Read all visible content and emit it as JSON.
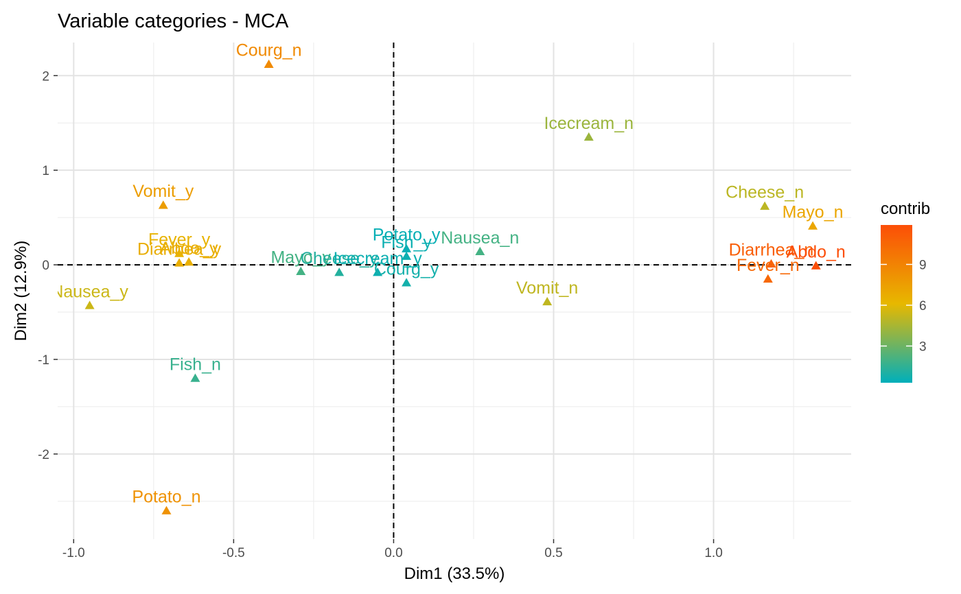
{
  "chart_data": {
    "type": "scatter",
    "title": "Variable categories - MCA",
    "xlabel": "Dim1 (33.5%)",
    "ylabel": "Dim2 (12.9%)",
    "xlim": [
      -1.05,
      1.43
    ],
    "ylim": [
      -2.9,
      2.35
    ],
    "x_ticks": [
      -1.0,
      -0.5,
      0.0,
      0.5,
      1.0
    ],
    "x_tick_labels": [
      "-1.0",
      "-0.5",
      "0.0",
      "0.5",
      "1.0"
    ],
    "y_ticks": [
      -2,
      -1,
      0,
      1,
      2
    ],
    "y_tick_labels": [
      "-2",
      "-1",
      "0",
      "1",
      "2"
    ],
    "grid": true,
    "reference_lines": {
      "x": 0,
      "y": 0,
      "style": "dashed"
    },
    "marker": "triangle",
    "legend": {
      "title": "contrib",
      "placement": "right",
      "min": 0.3,
      "max": 11.9,
      "ticks": [
        3,
        6,
        9
      ],
      "tick_labels": [
        "3",
        "6",
        "9"
      ],
      "colors": [
        "#00AFBB",
        "#E7B800",
        "#FC4E07"
      ]
    },
    "points": [
      {
        "label": "Courg_n",
        "x": -0.39,
        "y": 2.12,
        "contrib": 8.6
      },
      {
        "label": "Icecream_n",
        "x": 0.61,
        "y": 1.35,
        "contrib": 4.2
      },
      {
        "label": "Cheese_n",
        "x": 1.16,
        "y": 0.62,
        "contrib": 5.0
      },
      {
        "label": "Mayo_n",
        "x": 1.31,
        "y": 0.41,
        "contrib": 7.1
      },
      {
        "label": "Vomit_y",
        "x": -0.72,
        "y": 0.63,
        "contrib": 7.6
      },
      {
        "label": "Fever_y",
        "x": -0.67,
        "y": 0.12,
        "contrib": 6.4
      },
      {
        "label": "Abdo_y",
        "x": -0.64,
        "y": 0.03,
        "contrib": 6.6
      },
      {
        "label": "Diarrhea_y",
        "x": -0.67,
        "y": 0.02,
        "contrib": 6.7
      },
      {
        "label": "Nausea_y",
        "x": -0.95,
        "y": -0.43,
        "contrib": 5.4
      },
      {
        "label": "Potato_y",
        "x": 0.04,
        "y": 0.17,
        "contrib": 0.5
      },
      {
        "label": "Fish_y",
        "x": 0.04,
        "y": 0.09,
        "contrib": 0.6
      },
      {
        "label": "Nausea_n",
        "x": 0.27,
        "y": 0.14,
        "contrib": 2.0
      },
      {
        "label": "Mayo_y",
        "x": -0.29,
        "y": -0.07,
        "contrib": 2.0
      },
      {
        "label": "Cheese_y",
        "x": -0.17,
        "y": -0.08,
        "contrib": 1.2
      },
      {
        "label": "Icecream_y",
        "x": -0.05,
        "y": -0.08,
        "contrib": 0.6
      },
      {
        "label": "Courg_y",
        "x": 0.04,
        "y": -0.19,
        "contrib": 0.8
      },
      {
        "label": "Vomit_n",
        "x": 0.48,
        "y": -0.39,
        "contrib": 5.1
      },
      {
        "label": "Diarrhea_n",
        "x": 1.18,
        "y": 0.01,
        "contrib": 11.0
      },
      {
        "label": "Abdo_n",
        "x": 1.32,
        "y": -0.01,
        "contrib": 11.9
      },
      {
        "label": "Fever_n",
        "x": 1.17,
        "y": -0.15,
        "contrib": 10.5
      },
      {
        "label": "Fish_n",
        "x": -0.62,
        "y": -1.2,
        "contrib": 1.7
      },
      {
        "label": "Potato_n",
        "x": -0.71,
        "y": -2.6,
        "contrib": 8.2
      }
    ]
  }
}
